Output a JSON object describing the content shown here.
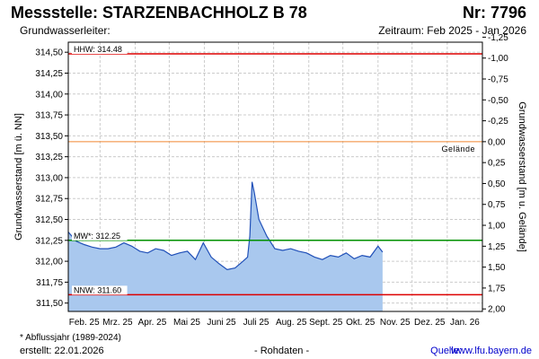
{
  "header": {
    "title": "Messstelle: STARZENBACHHOLZ B 78",
    "station_nr": "Nr: 7796",
    "subtitle_left": "Grundwasserleiter:",
    "subtitle_right": "Zeitraum: Feb 2025 - Jan 2026"
  },
  "footer": {
    "note": "* Abflussjahr (1989-2024)",
    "created": "erstellt:   22.01.2026",
    "raw": "- Rohdaten -",
    "source_label": "Quelle:",
    "source_url": "www.lfu.bayern.de"
  },
  "colors": {
    "fill": "#a9c8ee",
    "line": "#2050b8",
    "hhw": "#dd0000",
    "nnw": "#dd0000",
    "mw": "#009000",
    "gelaende": "#f08830",
    "grid": "#cccccc"
  },
  "chart_data": {
    "type": "area",
    "xlabel": "",
    "ylabel": "Grundwasserstand [m ü. NN]",
    "y2label": "Grundwasserstand [m u. Gelände]",
    "ylim": [
      311.4,
      314.62
    ],
    "y_ticks": [
      "311,50",
      "311,75",
      "312,00",
      "312,25",
      "312,50",
      "312,75",
      "313,00",
      "313,25",
      "313,50",
      "313,75",
      "314,00",
      "314,25",
      "314,50"
    ],
    "y2_ticks": [
      "-1,25",
      "-1,00",
      "-0,75",
      "-0,50",
      "-0,25",
      "0,00",
      "0,25",
      "0,50",
      "0,75",
      "1,00",
      "1,25",
      "1,50",
      "1,75",
      "2,00"
    ],
    "ground_level": 313.43,
    "x_ticks": [
      "Feb. 25",
      "Mrz. 25",
      "Apr. 25",
      "Mai 25",
      "Juni 25",
      "Juli 25",
      "Aug. 25",
      "Sept. 25",
      "Okt. 25",
      "Nov. 25",
      "Dez. 25",
      "Jan. 26"
    ],
    "reference_lines": [
      {
        "label": "HHW: 314.48",
        "value": 314.48,
        "color": "#dd0000"
      },
      {
        "label": "MW*: 312.25",
        "value": 312.25,
        "color": "#009000"
      },
      {
        "label": "NNW: 311.60",
        "value": 311.6,
        "color": "#dd0000"
      },
      {
        "label": "Gelände",
        "value": 313.43,
        "color": "#f08830"
      }
    ],
    "series": [
      {
        "x": [
          "2025-02-01",
          "2025-02-08",
          "2025-02-15",
          "2025-02-22",
          "2025-03-01",
          "2025-03-08",
          "2025-03-15",
          "2025-03-22",
          "2025-03-29",
          "2025-04-05",
          "2025-04-12",
          "2025-04-19",
          "2025-04-26",
          "2025-05-03",
          "2025-05-10",
          "2025-05-17",
          "2025-05-24",
          "2025-05-31",
          "2025-06-07",
          "2025-06-14",
          "2025-06-21",
          "2025-06-28",
          "2025-07-05",
          "2025-07-09",
          "2025-07-11",
          "2025-07-13",
          "2025-07-15",
          "2025-07-19",
          "2025-07-26",
          "2025-08-02",
          "2025-08-09",
          "2025-08-16",
          "2025-08-23",
          "2025-08-30",
          "2025-09-06",
          "2025-09-13",
          "2025-09-20",
          "2025-09-27",
          "2025-10-04",
          "2025-10-11",
          "2025-10-18",
          "2025-10-25",
          "2025-11-01",
          "2025-11-05"
        ],
        "values": [
          312.35,
          312.24,
          312.2,
          312.17,
          312.15,
          312.15,
          312.17,
          312.22,
          312.18,
          312.12,
          312.1,
          312.15,
          312.13,
          312.07,
          312.1,
          312.12,
          312.02,
          312.22,
          312.05,
          311.97,
          311.9,
          311.92,
          312.0,
          312.05,
          312.3,
          312.95,
          312.82,
          312.5,
          312.3,
          312.15,
          312.13,
          312.15,
          312.12,
          312.1,
          312.05,
          312.02,
          312.07,
          312.05,
          312.1,
          312.03,
          312.07,
          312.05,
          312.18,
          312.11
        ]
      }
    ]
  }
}
